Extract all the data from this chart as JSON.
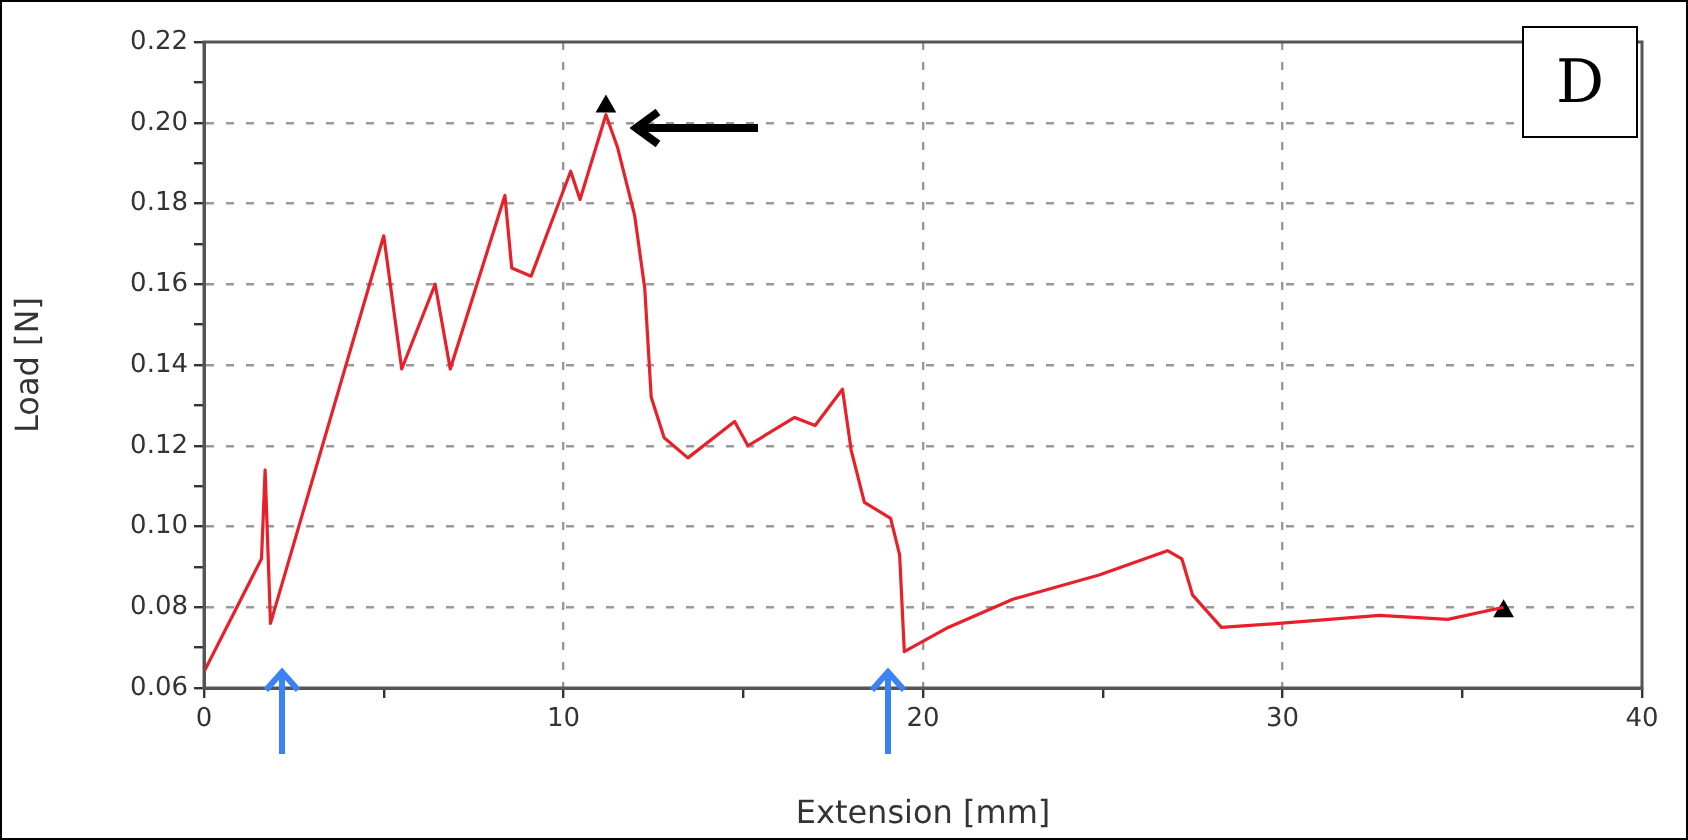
{
  "chart_data": {
    "type": "line",
    "xlabel": "Extension [mm]",
    "ylabel": "Load [N]",
    "annotations": [
      "D"
    ],
    "xlim": [
      0,
      40
    ],
    "xticks": [
      0,
      {
        "value": 5,
        "label": null
      },
      10,
      {
        "value": 15,
        "label": null
      },
      20,
      {
        "value": 25,
        "label": null
      },
      30,
      {
        "value": 35,
        "label": null
      },
      40
    ],
    "ylim": [
      0.06,
      0.22
    ],
    "yticks": [
      {
        "value": 0.06,
        "label": "0.06"
      },
      {
        "value": 0.07,
        "label": null
      },
      {
        "value": 0.08,
        "label": "0.08"
      },
      {
        "value": 0.09,
        "label": null
      },
      {
        "value": 0.1,
        "label": "0.10"
      },
      {
        "value": 0.11,
        "label": null
      },
      {
        "value": 0.12,
        "label": "0.12"
      },
      {
        "value": 0.13,
        "label": null
      },
      {
        "value": 0.14,
        "label": "0.14"
      },
      {
        "value": 0.15,
        "label": null
      },
      {
        "value": 0.16,
        "label": "0.16"
      },
      {
        "value": 0.17,
        "label": null
      },
      {
        "value": 0.18,
        "label": "0.18"
      },
      {
        "value": 0.19,
        "label": null
      },
      {
        "value": 0.2,
        "label": "0.20"
      },
      {
        "value": 0.21,
        "label": null
      },
      {
        "value": 0.22,
        "label": "0.22"
      }
    ],
    "grid": true,
    "legend": false,
    "line_style": "solid",
    "series": [
      {
        "color": "#e8202a",
        "marker": "none",
        "x": [
          0,
          1.6,
          1.7,
          1.85,
          5.0,
          5.5,
          6.43,
          6.85,
          8.37,
          8.56,
          9.1,
          10.2,
          10.46,
          11.18,
          11.5,
          11.98,
          12.26,
          12.44,
          12.8,
          13.46,
          14.76,
          15.13,
          16.43,
          17.0,
          17.76,
          18.0,
          18.37,
          19.1,
          19.35,
          19.48,
          20.7,
          22.5,
          24.9,
          26.8,
          27.2,
          27.5,
          28.3,
          29.9,
          32.7,
          34.6,
          36.15
        ],
        "values": [
          0.064,
          0.092,
          0.114,
          0.076,
          0.172,
          0.139,
          0.16,
          0.139,
          0.182,
          0.164,
          0.162,
          0.188,
          0.181,
          0.202,
          0.194,
          0.177,
          0.159,
          0.132,
          0.122,
          0.117,
          0.126,
          0.12,
          0.127,
          0.125,
          0.134,
          0.119,
          0.106,
          0.102,
          0.093,
          0.069,
          0.075,
          0.082,
          0.088,
          0.094,
          0.092,
          0.083,
          0.075,
          0.076,
          0.078,
          0.077,
          0.08
        ]
      },
      {
        "type": "scatter",
        "color": "#000000",
        "marker": "triangle",
        "x": [
          11.18,
          36.15
        ],
        "values": [
          0.204,
          0.079
        ]
      }
    ]
  }
}
